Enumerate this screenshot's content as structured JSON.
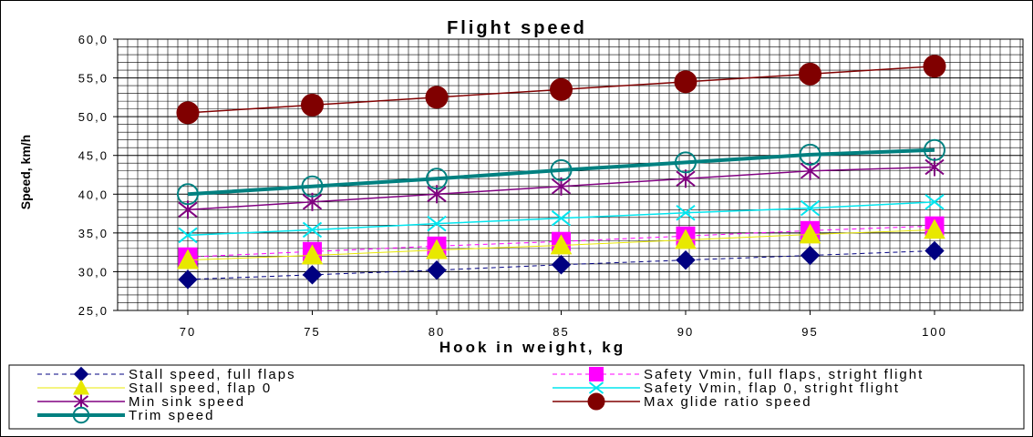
{
  "chart_data": {
    "type": "line",
    "title": "Flight speed",
    "xlabel": "Hook in weight, kg",
    "ylabel": "Speed, km/h",
    "x": [
      70,
      75,
      80,
      85,
      90,
      95,
      100
    ],
    "x_tick_labels": [
      "70",
      "75",
      "80",
      "85",
      "90",
      "95",
      "100"
    ],
    "ylim": [
      25,
      60
    ],
    "y_tick_labels": [
      "60,0",
      "55,0",
      "50,0",
      "45,0",
      "40,0",
      "35,0",
      "30,0",
      "25,0"
    ],
    "grid": true,
    "legend_position": "bottom",
    "series": [
      {
        "name": "Stall speed, full flaps",
        "values": [
          29.0,
          29.6,
          30.2,
          30.9,
          31.5,
          32.1,
          32.7
        ],
        "color": "#000080",
        "marker": "diamond",
        "dash": true,
        "width": 1
      },
      {
        "name": "Safety Vmin, full flaps, stright flight",
        "values": [
          31.9,
          32.6,
          33.3,
          33.9,
          34.6,
          35.3,
          35.9
        ],
        "color": "#ff00ff",
        "marker": "square",
        "dash": true,
        "width": 1
      },
      {
        "name": "Stall speed, flap 0",
        "values": [
          31.5,
          32.1,
          32.8,
          33.4,
          34.1,
          34.8,
          35.4
        ],
        "color": "#e8e800",
        "marker": "triangle",
        "dash": false,
        "width": 1
      },
      {
        "name": "Safety Vmin, flap 0, stright flight",
        "values": [
          34.7,
          35.4,
          36.2,
          36.9,
          37.6,
          38.2,
          39.0
        ],
        "color": "#00e5ee",
        "marker": "x",
        "dash": false,
        "width": 1.5
      },
      {
        "name": "Min sink speed",
        "values": [
          38.0,
          39.0,
          40.0,
          41.0,
          42.0,
          43.0,
          43.5
        ],
        "color": "#800080",
        "marker": "star",
        "dash": false,
        "width": 1.5
      },
      {
        "name": "Max glide ratio speed",
        "values": [
          50.5,
          51.5,
          52.5,
          53.5,
          54.5,
          55.5,
          56.5
        ],
        "color": "#800000",
        "marker": "circle-filled",
        "dash": false,
        "width": 1.5
      },
      {
        "name": "Trim speed",
        "values": [
          40.0,
          41.0,
          42.0,
          43.1,
          44.1,
          45.1,
          45.7
        ],
        "color": "#008080",
        "marker": "circle-open",
        "dash": false,
        "width": 4
      }
    ]
  }
}
